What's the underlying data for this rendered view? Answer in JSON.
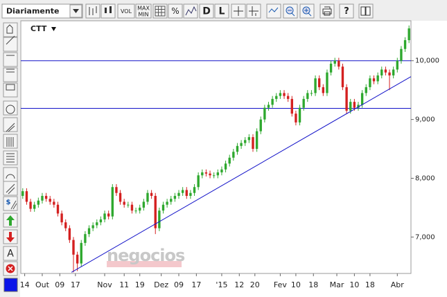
{
  "toolbar": {
    "period": "Diariamente",
    "vol": "VOL",
    "max": "MAX",
    "min": "MIN",
    "percent": "%",
    "d": "D",
    "l": "L",
    "help": "?"
  },
  "side_toolbar": {
    "dollar": "$",
    "text": "A"
  },
  "chart_data": {
    "type": "candlestick",
    "title": "CTT",
    "watermark": "negocios",
    "up_color": "#2ea82e",
    "down_color": "#d42020",
    "line_color": "#1010c8",
    "xlim": [
      0,
      100
    ],
    "ylim": [
      6380,
      10680
    ],
    "yticks": [
      {
        "value": 7000,
        "label": "7,000"
      },
      {
        "value": 8000,
        "label": "8,000"
      },
      {
        "value": 9000,
        "label": "9,000"
      },
      {
        "value": 10000,
        "label": "10,000"
      }
    ],
    "xticks": [
      {
        "value": 1,
        "label": "14"
      },
      {
        "value": 5.5,
        "label": "Out"
      },
      {
        "value": 10,
        "label": "09"
      },
      {
        "value": 14,
        "label": "17"
      },
      {
        "value": 21.5,
        "label": "Nov"
      },
      {
        "value": 26.5,
        "label": "11"
      },
      {
        "value": 30.5,
        "label": "19"
      },
      {
        "value": 36,
        "label": "Dez"
      },
      {
        "value": 40.5,
        "label": "09"
      },
      {
        "value": 45,
        "label": "17"
      },
      {
        "value": 51.5,
        "label": "'15"
      },
      {
        "value": 56,
        "label": "12"
      },
      {
        "value": 60,
        "label": "20"
      },
      {
        "value": 66.5,
        "label": "Fev"
      },
      {
        "value": 70.5,
        "label": "10"
      },
      {
        "value": 75,
        "label": "18"
      },
      {
        "value": 81,
        "label": "Mar"
      },
      {
        "value": 85.5,
        "label": "10"
      },
      {
        "value": 89.5,
        "label": "18"
      },
      {
        "value": 96.5,
        "label": "Abr"
      }
    ],
    "hlines": [
      10000,
      9190
    ],
    "trendline": {
      "x": [
        13,
        100
      ],
      "y": [
        6400,
        9730
      ]
    },
    "open": [
      7700,
      7780,
      7600,
      7480,
      7550,
      7620,
      7700,
      7650,
      7600,
      7550,
      7400,
      7250,
      7150,
      6950,
      6700,
      6550,
      6900,
      7050,
      7150,
      7200,
      7250,
      7300,
      7400,
      7350,
      7850,
      7750,
      7600,
      7550,
      7550,
      7450,
      7450,
      7500,
      7600,
      7750,
      7700,
      7150,
      7450,
      7550,
      7600,
      7650,
      7700,
      7750,
      7800,
      7700,
      7750,
      7850,
      8050,
      8100,
      8080,
      8050,
      8050,
      8100,
      8150,
      8250,
      8350,
      8450,
      8550,
      8600,
      8650,
      8700,
      8500,
      8800,
      9000,
      9200,
      9250,
      9350,
      9400,
      9450,
      9400,
      9350,
      9100,
      8950,
      9200,
      9350,
      9450,
      9450,
      9700,
      9550,
      9450,
      9800,
      9950,
      10000,
      9900,
      9550,
      9150,
      9300,
      9200,
      9250,
      9450,
      9550,
      9700,
      9650,
      9750,
      9850,
      9800,
      9750,
      9850,
      10000,
      10200,
      10350
    ],
    "close": [
      7780,
      7600,
      7480,
      7550,
      7620,
      7700,
      7650,
      7600,
      7550,
      7400,
      7250,
      7150,
      6950,
      6700,
      6550,
      6900,
      7050,
      7150,
      7200,
      7250,
      7300,
      7400,
      7350,
      7850,
      7750,
      7600,
      7550,
      7550,
      7450,
      7450,
      7500,
      7600,
      7750,
      7700,
      7150,
      7450,
      7550,
      7600,
      7650,
      7700,
      7750,
      7800,
      7700,
      7750,
      7850,
      8050,
      8100,
      8080,
      8050,
      8050,
      8100,
      8150,
      8250,
      8350,
      8450,
      8550,
      8600,
      8650,
      8700,
      8500,
      8800,
      9000,
      9200,
      9250,
      9350,
      9400,
      9450,
      9400,
      9350,
      9100,
      8950,
      9200,
      9350,
      9450,
      9450,
      9700,
      9550,
      9450,
      9800,
      9950,
      10000,
      9900,
      9550,
      9150,
      9300,
      9200,
      9250,
      9450,
      9550,
      9700,
      9650,
      9750,
      9850,
      9800,
      9750,
      9850,
      10000,
      10200,
      10350,
      10550
    ],
    "high": [
      7830,
      7830,
      7650,
      7600,
      7670,
      7750,
      7750,
      7700,
      7650,
      7600,
      7450,
      7300,
      7200,
      7000,
      6750,
      6950,
      7100,
      7200,
      7250,
      7300,
      7350,
      7450,
      7450,
      7900,
      7900,
      7800,
      7650,
      7600,
      7600,
      7500,
      7550,
      7650,
      7800,
      7800,
      7750,
      7500,
      7600,
      7650,
      7700,
      7750,
      7800,
      7850,
      7850,
      7800,
      7900,
      8100,
      8150,
      8150,
      8130,
      8100,
      8150,
      8200,
      8300,
      8400,
      8500,
      8600,
      8650,
      8700,
      8750,
      8750,
      8850,
      9050,
      9250,
      9300,
      9400,
      9450,
      9500,
      9500,
      9450,
      9400,
      9150,
      9250,
      9400,
      9500,
      9500,
      9750,
      9750,
      9600,
      9850,
      10000,
      10050,
      10050,
      9950,
      9600,
      9350,
      9350,
      9300,
      9500,
      9600,
      9750,
      9750,
      9800,
      9900,
      9900,
      9850,
      9900,
      10050,
      10250,
      10400,
      10600
    ],
    "low": [
      7650,
      7550,
      7430,
      7430,
      7500,
      7570,
      7600,
      7550,
      7500,
      7350,
      7200,
      7100,
      6900,
      6400,
      6420,
      6500,
      6850,
      7000,
      7100,
      7150,
      7200,
      7250,
      7300,
      7300,
      7700,
      7550,
      7500,
      7500,
      7400,
      7400,
      7400,
      7450,
      7550,
      7650,
      7050,
      7100,
      7400,
      7500,
      7550,
      7600,
      7650,
      7700,
      7650,
      7650,
      7700,
      7800,
      8000,
      8030,
      8000,
      8000,
      8000,
      8050,
      8100,
      8200,
      8300,
      8400,
      8500,
      8550,
      8600,
      8450,
      8450,
      8750,
      8950,
      9150,
      9200,
      9300,
      9350,
      9350,
      9300,
      9050,
      8900,
      8900,
      9150,
      9300,
      9400,
      9400,
      9500,
      9400,
      9400,
      9750,
      9900,
      9850,
      9500,
      9100,
      9100,
      9150,
      9150,
      9200,
      9400,
      9500,
      9600,
      9600,
      9700,
      9750,
      9500,
      9700,
      9800,
      9950,
      10150,
      10300
    ]
  }
}
